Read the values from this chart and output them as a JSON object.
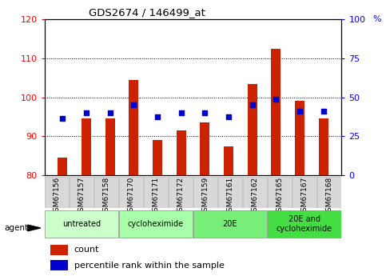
{
  "title": "GDS2674 / 146499_at",
  "samples": [
    "GSM67156",
    "GSM67157",
    "GSM67158",
    "GSM67170",
    "GSM67171",
    "GSM67172",
    "GSM67159",
    "GSM67161",
    "GSM67162",
    "GSM67165",
    "GSM67167",
    "GSM67168"
  ],
  "counts": [
    84.5,
    94.5,
    94.5,
    104.5,
    89.0,
    91.5,
    93.5,
    87.5,
    103.5,
    112.5,
    99.0,
    94.5
  ],
  "percentiles": [
    94.5,
    96.0,
    96.0,
    98.0,
    95.0,
    96.0,
    96.0,
    95.0,
    98.0,
    99.5,
    96.5,
    96.5
  ],
  "ylim_left": [
    80,
    120
  ],
  "ylim_right": [
    0,
    100
  ],
  "yticks_left": [
    80,
    90,
    100,
    110,
    120
  ],
  "yticks_right": [
    0,
    25,
    50,
    75,
    100
  ],
  "bar_color": "#CC2200",
  "dot_color": "#0000CC",
  "agent_groups": [
    {
      "label": "untreated",
      "start": 0,
      "end": 3,
      "color": "#ccffcc"
    },
    {
      "label": "cycloheximide",
      "start": 3,
      "end": 6,
      "color": "#aaffaa"
    },
    {
      "label": "20E",
      "start": 6,
      "end": 9,
      "color": "#77ee77"
    },
    {
      "label": "20E and\ncycloheximide",
      "start": 9,
      "end": 12,
      "color": "#44dd44"
    }
  ],
  "legend_count_label": "count",
  "legend_pct_label": "percentile rank within the sample",
  "agent_label": "agent",
  "bar_width": 0.4,
  "figsize": [
    4.83,
    3.45
  ],
  "dpi": 100
}
